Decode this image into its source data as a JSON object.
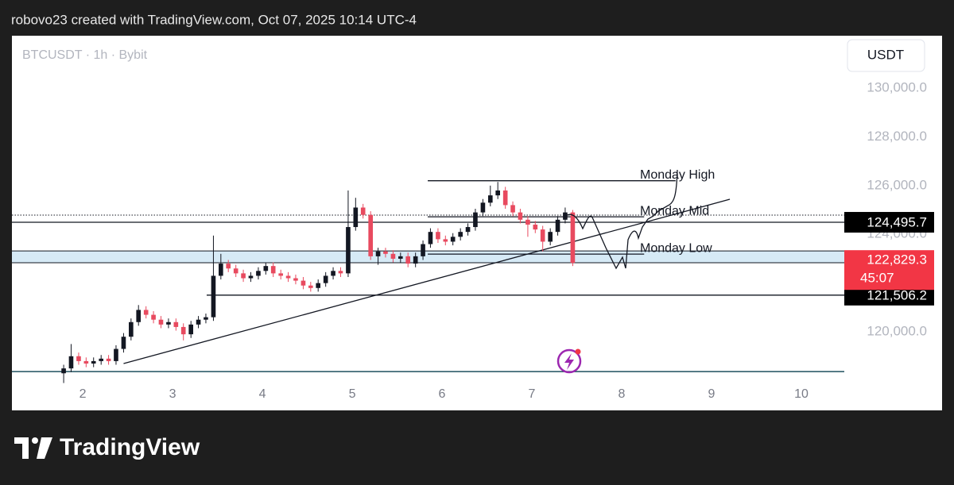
{
  "header": "robovo23 created with TradingView.com, Oct 07, 2025 10:14 UTC-4",
  "footer": "TradingView",
  "chart_data": {
    "type": "candlestick",
    "title": "BTCUSDT · 1h · Bybit",
    "currency": "USDT",
    "up_color": "#131722",
    "down_color": "#e84a5f",
    "xlim": [
      1.212,
      10.478
    ],
    "xticks": [
      2,
      3,
      4,
      5,
      6,
      7,
      8,
      9,
      10
    ],
    "ylim": [
      117820,
      132150
    ],
    "yticks": [
      {
        "value": 120000,
        "label": "120,000.0"
      },
      {
        "value": 122000,
        "label": "122,000.0"
      },
      {
        "value": 124000,
        "label": "124,000.0"
      },
      {
        "value": 126000,
        "label": "126,000.0"
      },
      {
        "value": 128000,
        "label": "128,000.0"
      },
      {
        "value": 130000,
        "label": "130,000.0"
      }
    ],
    "x": [
      1.788,
      1.871,
      1.955,
      2.038,
      2.121,
      2.205,
      2.288,
      2.371,
      2.455,
      2.538,
      2.621,
      2.705,
      2.788,
      2.871,
      2.955,
      3.038,
      3.121,
      3.205,
      3.288,
      3.371,
      3.455,
      3.538,
      3.621,
      3.705,
      3.788,
      3.871,
      3.955,
      4.038,
      4.121,
      4.205,
      4.288,
      4.371,
      4.455,
      4.538,
      4.621,
      4.705,
      4.788,
      4.871,
      4.955,
      5.038,
      5.121,
      5.205,
      5.288,
      5.371,
      5.455,
      5.538,
      5.621,
      5.705,
      5.788,
      5.871,
      5.955,
      6.038,
      6.121,
      6.205,
      6.288,
      6.371,
      6.455,
      6.538,
      6.621,
      6.705,
      6.788,
      6.871,
      6.955,
      7.038,
      7.121,
      7.205,
      7.288,
      7.371,
      7.455
    ],
    "open": [
      118300,
      118500,
      119000,
      118800,
      118700,
      118800,
      118900,
      118800,
      119300,
      119800,
      120400,
      120900,
      120700,
      120500,
      120300,
      120400,
      120200,
      119900,
      120300,
      120500,
      120600,
      122300,
      122800,
      122600,
      122400,
      122200,
      122300,
      122500,
      122700,
      122400,
      122300,
      122200,
      122100,
      121900,
      121800,
      122000,
      122300,
      122500,
      122400,
      124300,
      125100,
      124800,
      123100,
      123300,
      123200,
      123000,
      123100,
      122800,
      123100,
      123600,
      124100,
      123800,
      123700,
      123900,
      124100,
      124300,
      124900,
      125300,
      125600,
      125800,
      125200,
      124900,
      124600,
      124400,
      124200,
      123700,
      124100,
      124600,
      124900
    ],
    "high": [
      118650,
      119500,
      119150,
      118950,
      118950,
      119050,
      119050,
      119450,
      119950,
      120550,
      121100,
      121050,
      120850,
      120650,
      120550,
      120550,
      120350,
      120450,
      120650,
      120750,
      123950,
      123200,
      122950,
      122750,
      122550,
      122450,
      122650,
      122850,
      122850,
      122550,
      122450,
      122350,
      122250,
      122050,
      122150,
      122450,
      122650,
      122650,
      125800,
      125500,
      125250,
      124950,
      123450,
      123450,
      123350,
      123250,
      123250,
      123250,
      123750,
      124250,
      124250,
      123950,
      124050,
      124250,
      124450,
      125050,
      125450,
      126000,
      126150,
      125950,
      125350,
      125050,
      124750,
      124550,
      124350,
      124250,
      124750,
      125100,
      125000
    ],
    "low": [
      117900,
      118350,
      118650,
      118550,
      118550,
      118650,
      118650,
      118650,
      119150,
      119650,
      120250,
      120550,
      120350,
      120150,
      120150,
      120050,
      119650,
      119750,
      120150,
      120350,
      120450,
      122150,
      122450,
      122250,
      122050,
      122050,
      122150,
      122350,
      122250,
      122150,
      122050,
      121950,
      121750,
      121650,
      121650,
      121850,
      122150,
      122250,
      122250,
      124150,
      124650,
      122950,
      122750,
      123050,
      122850,
      122850,
      122650,
      122650,
      122950,
      123450,
      123650,
      123550,
      123550,
      123750,
      123950,
      124150,
      124750,
      125150,
      125450,
      125050,
      124750,
      124450,
      123900,
      124050,
      123300,
      123550,
      123950,
      124450,
      122700
    ],
    "close": [
      118500,
      119000,
      118800,
      118700,
      118800,
      118900,
      118800,
      119300,
      119800,
      120400,
      120900,
      120700,
      120500,
      120300,
      120400,
      120200,
      119900,
      120300,
      120500,
      120600,
      122300,
      122800,
      122600,
      122400,
      122200,
      122300,
      122500,
      122700,
      122400,
      122300,
      122200,
      122100,
      121900,
      121800,
      122000,
      122300,
      122500,
      122400,
      124300,
      125100,
      124800,
      123100,
      123300,
      123200,
      123000,
      123100,
      122800,
      123100,
      123600,
      124100,
      123800,
      123700,
      123900,
      124100,
      124300,
      124900,
      125300,
      125600,
      125800,
      125200,
      124900,
      124600,
      124400,
      124200,
      123700,
      124100,
      124600,
      124900,
      122829.3
    ],
    "band": [
      122834,
      123320
    ],
    "hlines": [
      {
        "price": 124790,
        "style": "dotted"
      },
      {
        "price": 118370,
        "color": "#1f4f5e"
      }
    ],
    "price_lines": [
      {
        "value": 124495.7,
        "label": "124,495.7",
        "from": 1.212
      },
      {
        "value": 121506.2,
        "label": "121,506.2",
        "from": 3.38
      }
    ],
    "last_price": {
      "value": 122829.3,
      "label": "122,829.3",
      "countdown": "45:07"
    },
    "levels": [
      {
        "text": "Monday High",
        "price": 126200,
        "x": [
          5.841,
          8.6
        ]
      },
      {
        "text": "Monday Mid",
        "price": 124720,
        "x": [
          5.841,
          8.25
        ]
      },
      {
        "text": "Monday Low",
        "price": 123190,
        "x": [
          5.841,
          8.25
        ]
      }
    ],
    "trendline": {
      "x": [
        2.455,
        9.204
      ],
      "y": [
        118700,
        125440
      ]
    }
  }
}
